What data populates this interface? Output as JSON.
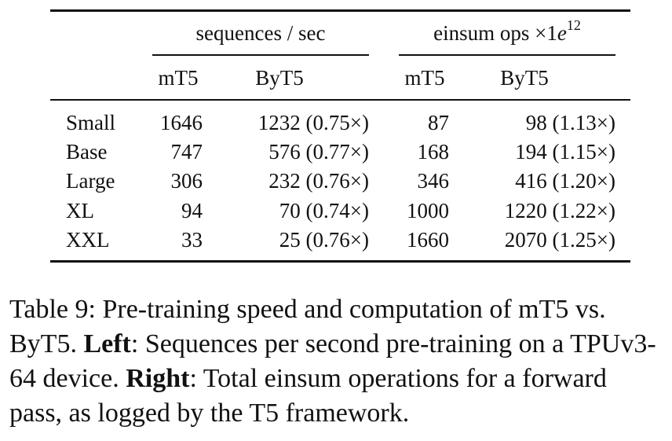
{
  "table": {
    "group_headers": {
      "left": "sequences / sec",
      "right_prefix": "einsum ops ×1",
      "right_base": "e",
      "right_exp": "12"
    },
    "subheaders": [
      "mT5",
      "ByT5",
      "mT5",
      "ByT5"
    ],
    "rows": [
      {
        "label": "Small",
        "seq_mt5": "1646",
        "seq_byt5": "1232 (0.75×)",
        "ops_mt5": "87",
        "ops_byt5": "98 (1.13×)"
      },
      {
        "label": "Base",
        "seq_mt5": "747",
        "seq_byt5": "576 (0.77×)",
        "ops_mt5": "168",
        "ops_byt5": "194 (1.15×)"
      },
      {
        "label": "Large",
        "seq_mt5": "306",
        "seq_byt5": "232 (0.76×)",
        "ops_mt5": "346",
        "ops_byt5": "416 (1.20×)"
      },
      {
        "label": "XL",
        "seq_mt5": "94",
        "seq_byt5": "70 (0.74×)",
        "ops_mt5": "1000",
        "ops_byt5": "1220 (1.22×)"
      },
      {
        "label": "XXL",
        "seq_mt5": "33",
        "seq_byt5": "25 (0.76×)",
        "ops_mt5": "1660",
        "ops_byt5": "2070 (1.25×)"
      }
    ]
  },
  "caption": {
    "intro": "Table 9: Pre-training speed and computation of mT5 vs. ByT5. ",
    "left_label": "Left",
    "left_text": ": Sequences per second pre-training on a TPUv3-64 device. ",
    "right_label": "Right",
    "right_text": ": Total einsum operations for a forward pass, as logged by the T5 framework."
  }
}
